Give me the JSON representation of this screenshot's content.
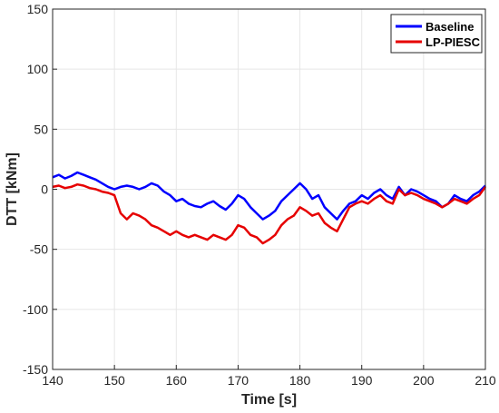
{
  "chart_data": {
    "type": "line",
    "title": "",
    "xlabel": "Time [s]",
    "ylabel": "DTT [kNm]",
    "xlim": [
      140,
      210
    ],
    "ylim": [
      -150,
      150
    ],
    "xticks": [
      "140",
      "150",
      "160",
      "170",
      "180",
      "190",
      "200",
      "210"
    ],
    "yticks": [
      "150",
      "100",
      "50",
      "0",
      "-50",
      "-100",
      "-150"
    ],
    "grid": true,
    "legend": "top-right",
    "series": [
      {
        "name": "Baseline",
        "color": "#0000ff",
        "x": [
          140,
          141,
          142,
          143,
          144,
          145,
          146,
          147,
          148,
          149,
          150,
          151,
          152,
          153,
          154,
          155,
          156,
          157,
          158,
          159,
          160,
          161,
          162,
          163,
          164,
          165,
          166,
          167,
          168,
          169,
          170,
          171,
          172,
          173,
          174,
          175,
          176,
          177,
          178,
          179,
          180,
          181,
          182,
          183,
          184,
          185,
          186,
          187,
          188,
          189,
          190,
          191,
          192,
          193,
          194,
          195,
          196,
          197,
          198,
          199,
          200,
          201,
          202,
          203,
          204,
          205,
          206,
          207,
          208,
          209,
          210
        ],
        "y": [
          10,
          12,
          9,
          11,
          14,
          12,
          10,
          8,
          5,
          2,
          0,
          2,
          3,
          2,
          0,
          2,
          5,
          3,
          -2,
          -5,
          -10,
          -8,
          -12,
          -14,
          -15,
          -12,
          -10,
          -14,
          -17,
          -12,
          -5,
          -8,
          -15,
          -20,
          -25,
          -22,
          -18,
          -10,
          -5,
          0,
          5,
          0,
          -8,
          -5,
          -15,
          -20,
          -25,
          -18,
          -12,
          -10,
          -5,
          -8,
          -3,
          0,
          -5,
          -8,
          2,
          -5,
          0,
          -2,
          -5,
          -8,
          -10,
          -15,
          -12,
          -5,
          -8,
          -10,
          -5,
          -2,
          3
        ]
      },
      {
        "name": "LP-PIESC",
        "color": "#e60000",
        "x": [
          140,
          141,
          142,
          143,
          144,
          145,
          146,
          147,
          148,
          149,
          150,
          151,
          152,
          153,
          154,
          155,
          156,
          157,
          158,
          159,
          160,
          161,
          162,
          163,
          164,
          165,
          166,
          167,
          168,
          169,
          170,
          171,
          172,
          173,
          174,
          175,
          176,
          177,
          178,
          179,
          180,
          181,
          182,
          183,
          184,
          185,
          186,
          187,
          188,
          189,
          190,
          191,
          192,
          193,
          194,
          195,
          196,
          197,
          198,
          199,
          200,
          201,
          202,
          203,
          204,
          205,
          206,
          207,
          208,
          209,
          210
        ],
        "y": [
          2,
          3,
          1,
          2,
          4,
          3,
          1,
          0,
          -2,
          -3,
          -5,
          -20,
          -25,
          -20,
          -22,
          -25,
          -30,
          -32,
          -35,
          -38,
          -35,
          -38,
          -40,
          -38,
          -40,
          -42,
          -38,
          -40,
          -42,
          -38,
          -30,
          -32,
          -38,
          -40,
          -45,
          -42,
          -38,
          -30,
          -25,
          -22,
          -15,
          -18,
          -22,
          -20,
          -28,
          -32,
          -35,
          -25,
          -15,
          -12,
          -10,
          -12,
          -8,
          -5,
          -10,
          -12,
          0,
          -5,
          -3,
          -5,
          -8,
          -10,
          -12,
          -15,
          -12,
          -8,
          -10,
          -12,
          -8,
          -5,
          2
        ]
      }
    ],
    "annotations": []
  },
  "legend": {
    "entries": [
      "Baseline",
      "LP-PIESC"
    ]
  }
}
